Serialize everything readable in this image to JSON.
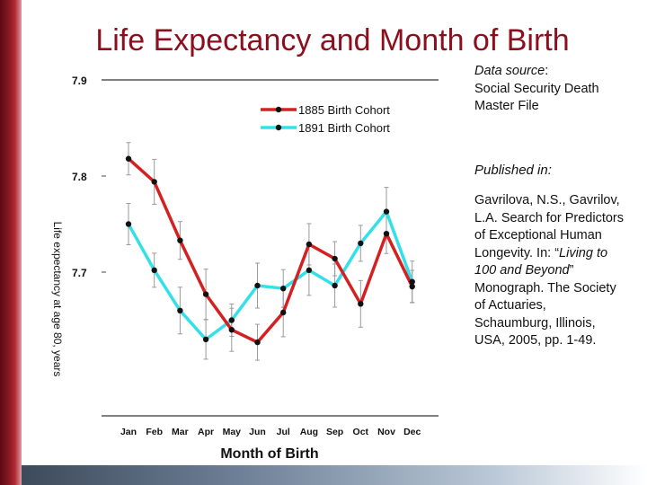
{
  "slide": {
    "title": "Life Expectancy and Month of Birth",
    "source_label": "Data source",
    "source_text": "Social Security Death Master File",
    "published_label": "Published in:",
    "citation": {
      "part1": "Gavrilova, N.S., Gavrilov, L.A. Search for Predictors of Exceptional Human Longevity. In: “",
      "italic": "Living to 100 and Beyond",
      "part2": "” Monograph. The Society of Actuaries, Schaumburg, Illinois, USA, 2005, pp. 1-49."
    }
  },
  "chart_data": {
    "type": "line",
    "xlabel": "Month of Birth",
    "ylabel": "Life expectancy at age 80, years",
    "categories": [
      "Jan",
      "Feb",
      "Mar",
      "Apr",
      "May",
      "Jun",
      "Jul",
      "Aug",
      "Sep",
      "Oct",
      "Nov",
      "Dec"
    ],
    "yticks": [
      7.7,
      7.8,
      7.9
    ],
    "ytick_labels": [
      "7.7",
      "7.8",
      "7.9"
    ],
    "ylim": [
      7.52,
      8.05
    ],
    "legend_position": "top-center",
    "series": [
      {
        "name": "1885 Birth Cohort",
        "color": "#d42020",
        "values": [
          7.818,
          7.794,
          7.733,
          7.677,
          7.64,
          7.627,
          7.658,
          7.729,
          7.714,
          7.667,
          7.74,
          7.685
        ]
      },
      {
        "name": "1891 Birth Cohort",
        "color": "#33e0ea",
        "values": [
          7.75,
          7.702,
          7.66,
          7.63,
          7.65,
          7.686,
          7.683,
          7.702,
          7.686,
          7.73,
          7.763,
          7.69
        ]
      }
    ]
  }
}
